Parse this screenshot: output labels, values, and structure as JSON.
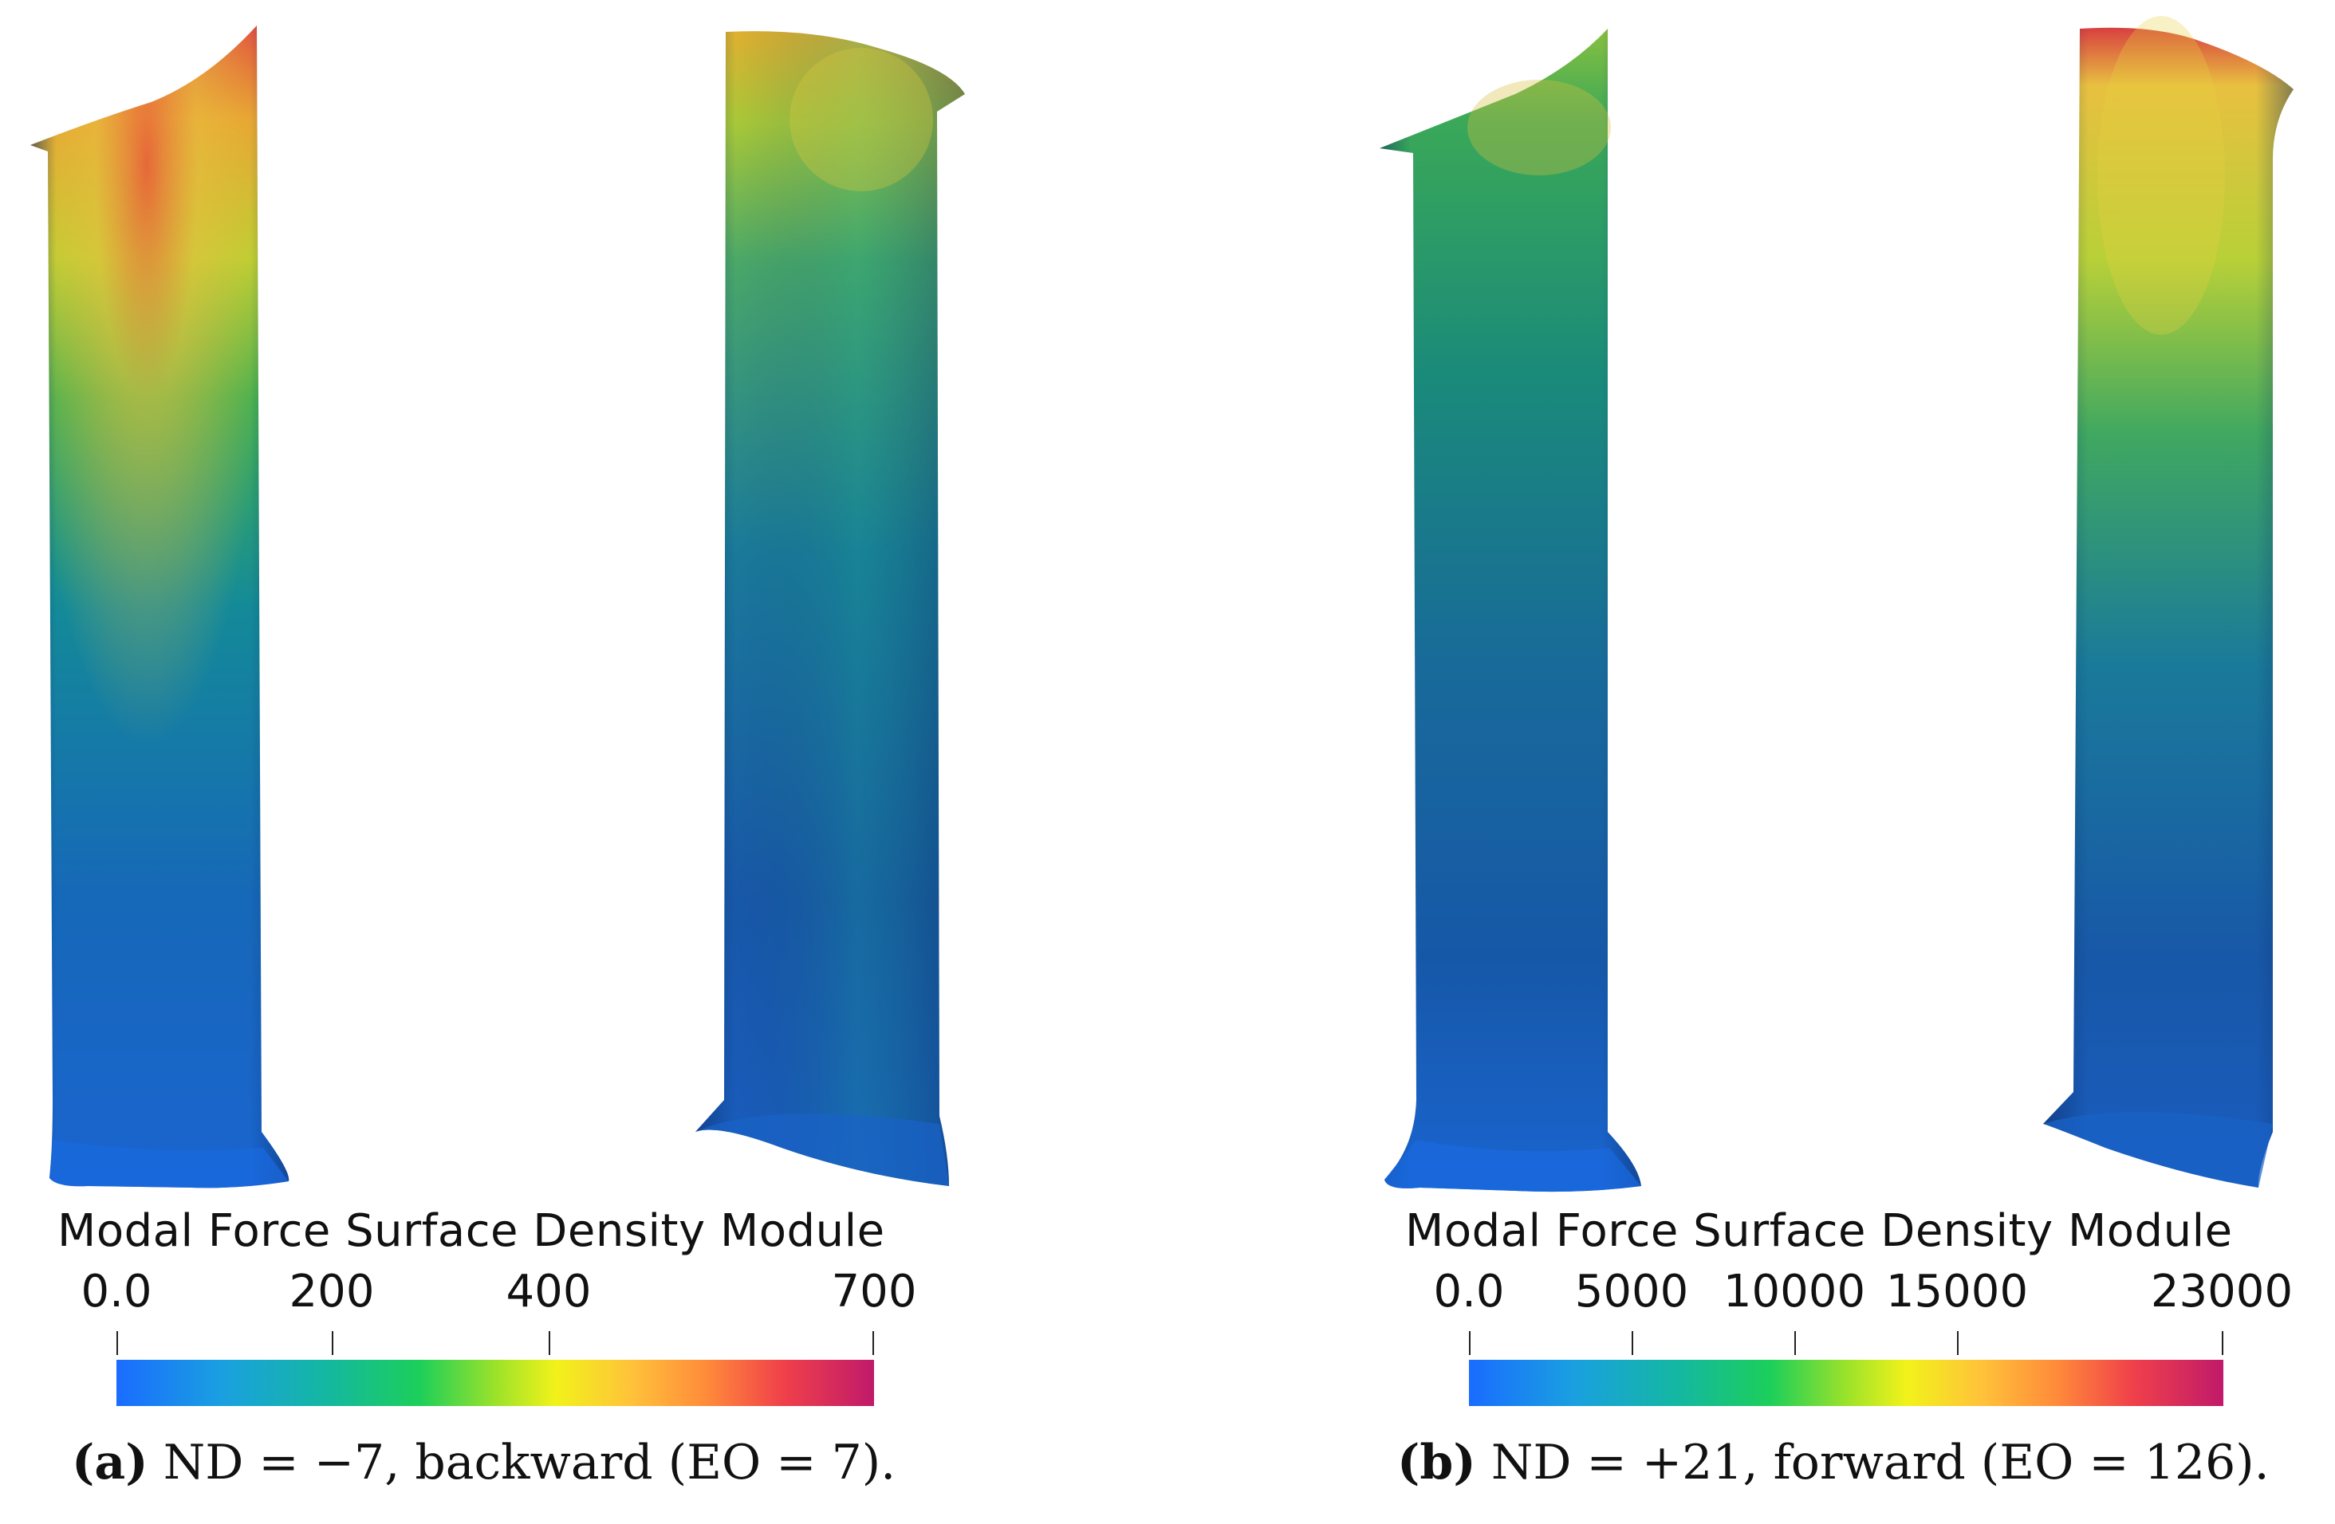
{
  "panels": [
    {
      "colorbar": {
        "title": "Modal Force Surface Density Module",
        "ticks": [
          "0.0",
          "200",
          "400",
          "700"
        ]
      },
      "caption": {
        "tag": "(a)",
        "text": "ND = −7, backward (EO = 7)."
      }
    },
    {
      "colorbar": {
        "title": "Modal Force Surface Density Module",
        "ticks": [
          "0.0",
          "5000",
          "10000",
          "15000",
          "23000"
        ]
      },
      "caption": {
        "tag": "(b)",
        "text": "ND = +21, forward (EO = 126)."
      }
    }
  ],
  "colors": {
    "colormap": [
      "#1a6cff",
      "#14b8a0",
      "#1ccf5a",
      "#f2f21a",
      "#ff8a3a",
      "#f0404a",
      "#c01a6a"
    ],
    "blade_base": "#1a5cc0"
  }
}
